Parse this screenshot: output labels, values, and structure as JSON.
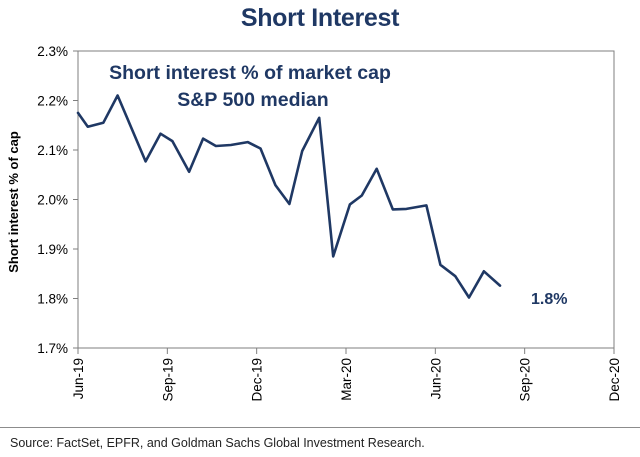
{
  "figure": {
    "title": "Short Interest",
    "source": "Source: FactSet, EPFR, and Goldman Sachs Global Investment Research."
  },
  "chart_data": {
    "type": "line",
    "title": "Short Interest",
    "annotation_lines": [
      "Short interest % of market cap",
      "S&P 500 median"
    ],
    "ylabel": "Short interest % of cap",
    "xlabel": "",
    "ylim": [
      1.7,
      2.3
    ],
    "yticks": [
      1.7,
      1.8,
      1.9,
      2.0,
      2.1,
      2.2,
      2.3
    ],
    "ytick_labels": [
      "1.7%",
      "1.8%",
      "1.9%",
      "2.0%",
      "2.1%",
      "2.2%",
      "2.3%"
    ],
    "xlim_months": [
      0,
      18
    ],
    "xticks": [
      {
        "month": 0,
        "label": "Jun-19"
      },
      {
        "month": 3,
        "label": "Sep-19"
      },
      {
        "month": 6,
        "label": "Dec-19"
      },
      {
        "month": 9,
        "label": "Mar-20"
      },
      {
        "month": 12,
        "label": "Jun-20"
      },
      {
        "month": 15,
        "label": "Sep-20"
      },
      {
        "month": 18,
        "label": "Dec-20"
      }
    ],
    "series": [
      {
        "name": "S&P 500 median",
        "color": "#1f3864",
        "points": [
          {
            "x": 0.0,
            "y": 2.175
          },
          {
            "x": 0.33,
            "y": 2.147
          },
          {
            "x": 0.85,
            "y": 2.155
          },
          {
            "x": 1.33,
            "y": 2.21
          },
          {
            "x": 2.27,
            "y": 2.077
          },
          {
            "x": 2.77,
            "y": 2.133
          },
          {
            "x": 3.17,
            "y": 2.118
          },
          {
            "x": 3.73,
            "y": 2.056
          },
          {
            "x": 4.2,
            "y": 2.123
          },
          {
            "x": 4.63,
            "y": 2.108
          },
          {
            "x": 5.13,
            "y": 2.11
          },
          {
            "x": 5.7,
            "y": 2.116
          },
          {
            "x": 6.13,
            "y": 2.103
          },
          {
            "x": 6.63,
            "y": 2.029
          },
          {
            "x": 7.1,
            "y": 1.991
          },
          {
            "x": 7.53,
            "y": 2.098
          },
          {
            "x": 8.1,
            "y": 2.165
          },
          {
            "x": 8.57,
            "y": 1.885
          },
          {
            "x": 9.13,
            "y": 1.99
          },
          {
            "x": 9.53,
            "y": 2.008
          },
          {
            "x": 10.03,
            "y": 2.062
          },
          {
            "x": 10.57,
            "y": 1.98
          },
          {
            "x": 11.03,
            "y": 1.981
          },
          {
            "x": 11.7,
            "y": 1.988
          },
          {
            "x": 12.17,
            "y": 1.868
          },
          {
            "x": 12.67,
            "y": 1.845
          },
          {
            "x": 13.13,
            "y": 1.802
          },
          {
            "x": 13.63,
            "y": 1.855
          },
          {
            "x": 14.17,
            "y": 1.826
          }
        ]
      }
    ],
    "end_label": "1.8%",
    "grid": false
  }
}
